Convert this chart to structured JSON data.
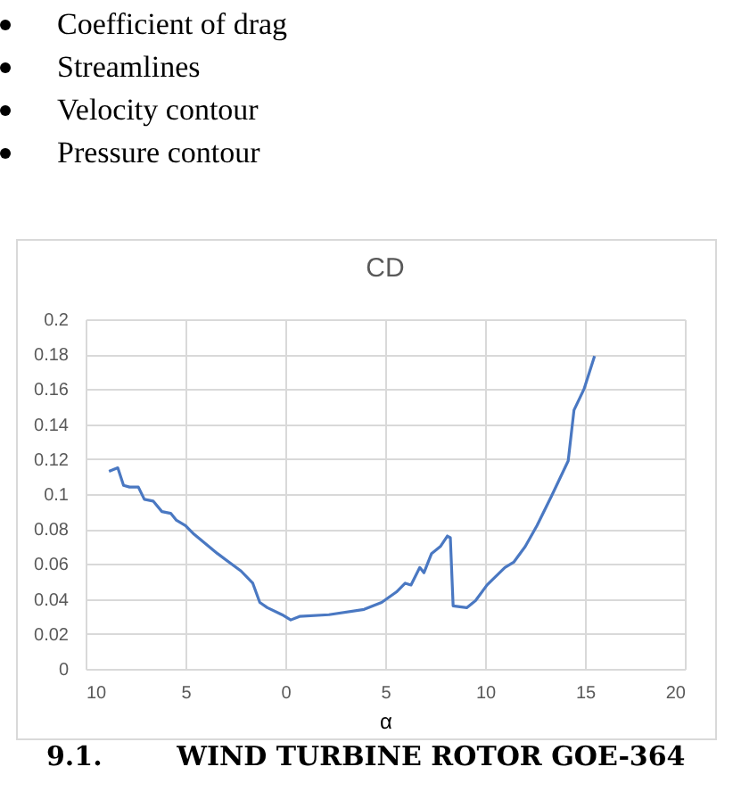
{
  "chart_data": {
    "type": "line",
    "title": "CD",
    "xlabel": "α",
    "annotations": [
      "Coefficient of drag",
      "Streamlines",
      "Velocity contour",
      "Pressure contour",
      "9.1.        WIND TURBINE ROTOR GOE-364"
    ],
    "series": [
      {
        "color": "#4a78c2",
        "x": [
          -8.83,
          -8.39,
          -8.1,
          -7.8,
          -7.36,
          -7.06,
          -6.62,
          -6.18,
          -5.74,
          -5.45,
          -5.0,
          -4.57,
          -3.4,
          -2.22,
          -1.63,
          -1.28,
          -0.9,
          -0.17,
          0.27,
          0.71,
          2.18,
          3.94,
          4.82,
          5.56,
          6.0,
          6.29,
          6.73,
          6.94,
          7.32,
          7.76,
          8.11,
          8.26,
          8.4,
          9.08,
          9.52,
          10.1,
          10.99,
          11.43,
          12.01,
          12.6,
          13.33,
          14.16,
          14.45,
          14.95,
          15.48
        ],
        "values": [
          0.113,
          0.115,
          0.105,
          0.104,
          0.104,
          0.097,
          0.096,
          0.09,
          0.089,
          0.085,
          0.082,
          0.077,
          0.066,
          0.056,
          0.049,
          0.038,
          0.035,
          0.031,
          0.028,
          0.03,
          0.031,
          0.034,
          0.038,
          0.044,
          0.049,
          0.048,
          0.058,
          0.055,
          0.066,
          0.07,
          0.076,
          0.075,
          0.036,
          0.035,
          0.039,
          0.048,
          0.058,
          0.061,
          0.07,
          0.082,
          0.099,
          0.119,
          0.148,
          0.16,
          0.179
        ]
      }
    ],
    "xlim": [
      -10,
      20
    ],
    "xticks": [
      {
        "value": -10,
        "label": "10"
      },
      {
        "value": -5,
        "label": "5"
      },
      0,
      5,
      10,
      15,
      20
    ],
    "ylim": [
      0,
      0.2
    ],
    "yticks": [
      0,
      0.02,
      0.04,
      0.06,
      0.08,
      0.1,
      0.12,
      0.14,
      0.16,
      0.18,
      0.2
    ],
    "grid": true,
    "legend": false,
    "marker": "none",
    "line_style": "solid"
  }
}
